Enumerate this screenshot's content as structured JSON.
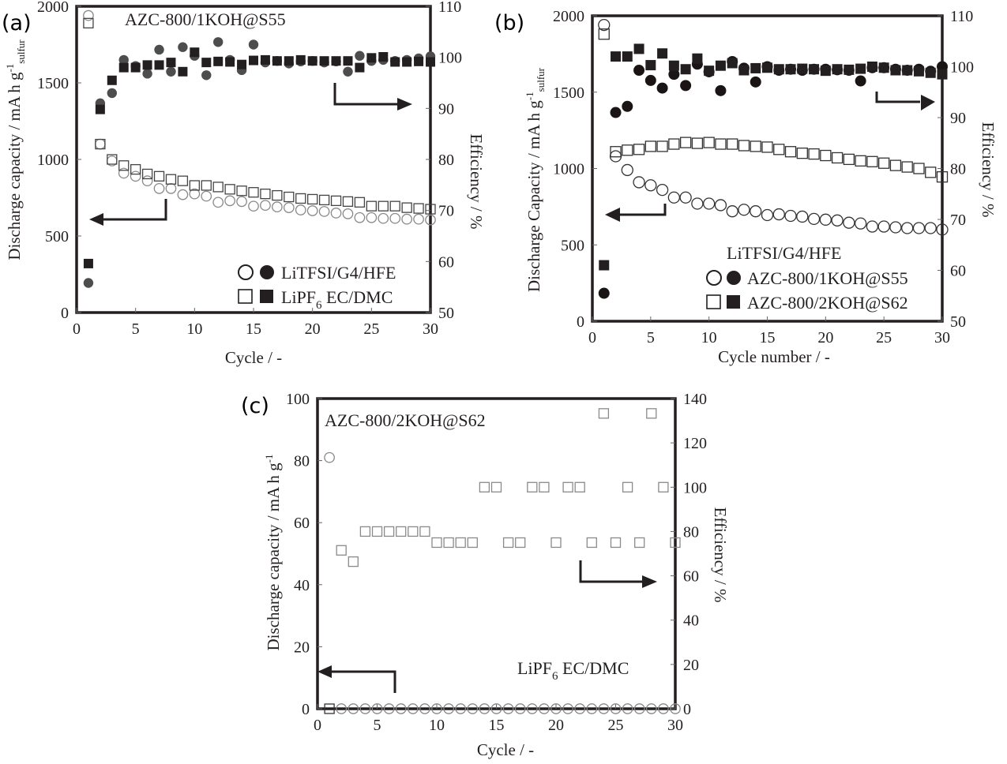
{
  "chart_data": [
    {
      "id": "a",
      "type": "scatter",
      "panel_label": "(a)",
      "title": "AZC-800/1KOH@S55",
      "xlabel": "Cycle / -",
      "ylabel_main": "Discharge capacity / mA h g",
      "ylabel_sup": "-1",
      "ylabel_sub": "sulfur",
      "y2label": "Efficiency / %",
      "xlim": [
        0,
        30
      ],
      "ylim": [
        0,
        2000
      ],
      "y2lim": [
        50,
        110
      ],
      "xticks": [
        0,
        5,
        10,
        15,
        20,
        25,
        30
      ],
      "yticks": [
        0,
        500,
        1000,
        1500,
        2000
      ],
      "y2ticks": [
        50,
        60,
        70,
        80,
        90,
        100,
        110
      ],
      "grid": false,
      "legend_position": "bottom-right",
      "legend": [
        {
          "label_main": "LiTFSI/G4/HFE",
          "label_sub": "",
          "label_rest": "",
          "marker": "circle"
        },
        {
          "label_main": "LiPF",
          "label_sub": "6",
          "label_rest": " EC/DMC",
          "marker": "square"
        }
      ],
      "x": [
        1,
        2,
        3,
        4,
        5,
        6,
        7,
        8,
        9,
        10,
        11,
        12,
        13,
        14,
        15,
        16,
        17,
        18,
        19,
        20,
        21,
        22,
        23,
        24,
        25,
        26,
        27,
        28,
        29,
        30
      ],
      "series": [
        {
          "name": "LiTFSI/G4/HFE capacity",
          "axis": "left",
          "marker": "circle",
          "filled": false,
          "color": "#888888",
          "values": [
            1940,
            1100,
            990,
            910,
            890,
            860,
            810,
            810,
            770,
            775,
            760,
            720,
            730,
            725,
            695,
            700,
            690,
            685,
            670,
            665,
            660,
            650,
            645,
            620,
            620,
            615,
            615,
            610,
            610,
            605
          ]
        },
        {
          "name": "LiPF6 EC/DMC capacity",
          "axis": "left",
          "marker": "square",
          "filled": false,
          "color": "#444444",
          "values": [
            1890,
            1100,
            1000,
            960,
            935,
            905,
            890,
            870,
            860,
            830,
            830,
            820,
            805,
            795,
            785,
            775,
            765,
            755,
            745,
            740,
            735,
            730,
            725,
            720,
            695,
            695,
            695,
            685,
            680,
            675
          ]
        },
        {
          "name": "LiTFSI/G4/HFE efficiency",
          "axis": "right",
          "marker": "circle",
          "filled": true,
          "color": "#4d4d4d",
          "values": [
            55.8,
            91,
            93,
            99.5,
            98.3,
            96.8,
            101.5,
            97.2,
            102,
            100.3,
            96.5,
            103,
            99.5,
            97.5,
            102.5,
            99,
            99.3,
            98.8,
            99.2,
            99.3,
            99,
            99.2,
            97.2,
            100.3,
            99.3,
            99.5,
            99.3,
            99.5,
            99.8,
            100.2
          ]
        },
        {
          "name": "LiPF6 EC/DMC efficiency",
          "axis": "right",
          "marker": "square",
          "filled": true,
          "color": "#231f20",
          "values": [
            59.6,
            89.8,
            95.5,
            98,
            98,
            98.5,
            98.5,
            99,
            97.2,
            101,
            99,
            99.2,
            99.1,
            98.6,
            99.4,
            99.5,
            99.3,
            99.3,
            99.5,
            99.3,
            99.3,
            99.3,
            99.3,
            98,
            99.9,
            100.1,
            99.1,
            99.1,
            99.2,
            99.1
          ]
        }
      ],
      "annotations": [
        {
          "type": "arrow",
          "direction": "left",
          "meaning": "capacity reads left axis"
        },
        {
          "type": "arrow",
          "direction": "right",
          "meaning": "efficiency reads right axis"
        }
      ]
    },
    {
      "id": "b",
      "type": "scatter",
      "panel_label": "(b)",
      "title": "",
      "xlabel": "Cycle number / -",
      "ylabel_main": "Discharge Capacity / mA h g",
      "ylabel_sup": "-1",
      "ylabel_sub": "sulfur",
      "y2label": "Efficiency / %",
      "xlim": [
        0,
        30
      ],
      "ylim": [
        0,
        2000
      ],
      "y2lim": [
        50,
        110
      ],
      "xticks": [
        0,
        5,
        10,
        15,
        20,
        25,
        30
      ],
      "yticks": [
        0,
        500,
        1000,
        1500,
        2000
      ],
      "y2ticks": [
        50,
        60,
        70,
        80,
        90,
        100,
        110
      ],
      "grid": false,
      "legend_position": "bottom-right",
      "legend_title": "LiTFSI/G4/HFE",
      "legend": [
        {
          "label_main": "AZC-800/1KOH@S55",
          "label_sub": "",
          "label_rest": "",
          "marker": "circle"
        },
        {
          "label_main": "AZC-800/2KOH@S62",
          "label_sub": "",
          "label_rest": "",
          "marker": "square"
        }
      ],
      "x": [
        1,
        2,
        3,
        4,
        5,
        6,
        7,
        8,
        9,
        10,
        11,
        12,
        13,
        14,
        15,
        16,
        17,
        18,
        19,
        20,
        21,
        22,
        23,
        24,
        25,
        26,
        27,
        28,
        29,
        30
      ],
      "series": [
        {
          "name": "AZC-800/1KOH@S55 capacity",
          "axis": "left",
          "marker": "circle",
          "filled": false,
          "color": "#333333",
          "values": [
            1940,
            1080,
            990,
            910,
            890,
            860,
            810,
            810,
            770,
            770,
            760,
            720,
            730,
            720,
            695,
            700,
            690,
            685,
            670,
            665,
            660,
            645,
            640,
            620,
            620,
            615,
            610,
            610,
            610,
            600
          ]
        },
        {
          "name": "AZC-800/2KOH@S62 capacity",
          "axis": "left",
          "marker": "square",
          "filled": false,
          "color": "#333333",
          "values": [
            1880,
            1110,
            1120,
            1125,
            1145,
            1145,
            1160,
            1170,
            1165,
            1170,
            1160,
            1160,
            1150,
            1145,
            1140,
            1125,
            1110,
            1100,
            1095,
            1085,
            1070,
            1060,
            1050,
            1045,
            1035,
            1020,
            1010,
            1000,
            975,
            945
          ]
        },
        {
          "name": "AZC-800/1KOH@S55 efficiency",
          "axis": "right",
          "marker": "circle",
          "filled": true,
          "color": "#1a1414",
          "values": [
            55.5,
            91,
            92.2,
            99.3,
            97.3,
            95.8,
            98.5,
            96.3,
            100.5,
            99,
            95.3,
            101,
            99.7,
            97,
            100,
            99.3,
            99.5,
            99.3,
            99.5,
            99.5,
            99.4,
            99.3,
            97.2,
            99.8,
            99.8,
            99.5,
            99.3,
            99.5,
            99.1,
            100
          ]
        },
        {
          "name": "AZC-800/2KOH@S62 efficiency",
          "axis": "right",
          "marker": "square",
          "filled": true,
          "color": "#231f20",
          "values": [
            61,
            102,
            102,
            103.5,
            100.3,
            102.6,
            100.2,
            99.5,
            101.6,
            99.2,
            100.2,
            100.7,
            99.3,
            99.7,
            99.8,
            99.5,
            99.5,
            99.6,
            99.5,
            99.2,
            99.5,
            99.4,
            99.6,
            100,
            99.8,
            99.3,
            99.3,
            99.1,
            98.8,
            98.5
          ]
        }
      ],
      "annotations": [
        {
          "type": "arrow",
          "direction": "left",
          "meaning": "capacity reads left axis"
        },
        {
          "type": "arrow",
          "direction": "right",
          "meaning": "efficiency reads right axis"
        }
      ]
    },
    {
      "id": "c",
      "type": "scatter",
      "panel_label": "(c)",
      "title": "AZC-800/2KOH@S62",
      "xlabel": "Cycle / -",
      "ylabel_main": "Discharge capacity / mA h g",
      "ylabel_sup": "-1",
      "ylabel_sub": "",
      "y2label": "Efficiency / %",
      "xlim": [
        0,
        30
      ],
      "ylim": [
        0,
        100
      ],
      "y2lim": [
        0,
        140
      ],
      "xticks": [
        0,
        5,
        10,
        15,
        20,
        25,
        30
      ],
      "yticks": [
        0,
        20,
        40,
        60,
        80,
        100
      ],
      "y2ticks": [
        0,
        20,
        40,
        60,
        80,
        100,
        120,
        140
      ],
      "grid": false,
      "legend_position": "bottom-right",
      "annotation_text_main": "LiPF",
      "annotation_text_sub": "6",
      "annotation_text_rest": " EC/DMC",
      "x": [
        1,
        2,
        3,
        4,
        5,
        6,
        7,
        8,
        9,
        10,
        11,
        12,
        13,
        14,
        15,
        16,
        17,
        18,
        19,
        20,
        21,
        22,
        23,
        24,
        25,
        26,
        27,
        28,
        29,
        30
      ],
      "series": [
        {
          "name": "Discharge capacity",
          "axis": "left",
          "marker": "circle",
          "filled": false,
          "color": "#888888",
          "values": [
            81,
            0,
            0,
            0,
            0,
            0,
            0,
            0,
            0,
            0,
            0,
            0,
            0,
            0,
            0,
            0,
            0,
            0,
            0,
            0,
            0,
            0,
            0,
            0,
            0,
            0,
            0,
            0,
            0,
            0
          ]
        },
        {
          "name": "Capacity (cycle 1 square)",
          "axis": "left",
          "marker": "square",
          "filled": false,
          "color": "#333333",
          "x": [
            1
          ],
          "values": [
            0
          ]
        },
        {
          "name": "Efficiency",
          "axis": "right",
          "marker": "square",
          "filled": false,
          "color": "#8a8a8a",
          "x": [
            2,
            3,
            4,
            5,
            6,
            7,
            8,
            9,
            10,
            11,
            12,
            13,
            14,
            15,
            16,
            17,
            18,
            19,
            20,
            21,
            22,
            23,
            24,
            25,
            26,
            27,
            28,
            29,
            30
          ],
          "values": [
            71.5,
            66.4,
            80,
            80,
            80,
            80,
            80,
            80,
            75,
            75,
            75,
            75,
            100,
            100,
            75,
            75,
            100,
            100,
            75,
            100,
            100,
            75,
            133.3,
            75,
            100,
            75,
            133.3,
            100,
            75
          ]
        }
      ],
      "annotations": [
        {
          "type": "arrow",
          "direction": "left",
          "meaning": "capacity reads left axis"
        },
        {
          "type": "arrow",
          "direction": "right",
          "meaning": "efficiency reads right axis"
        }
      ]
    }
  ]
}
